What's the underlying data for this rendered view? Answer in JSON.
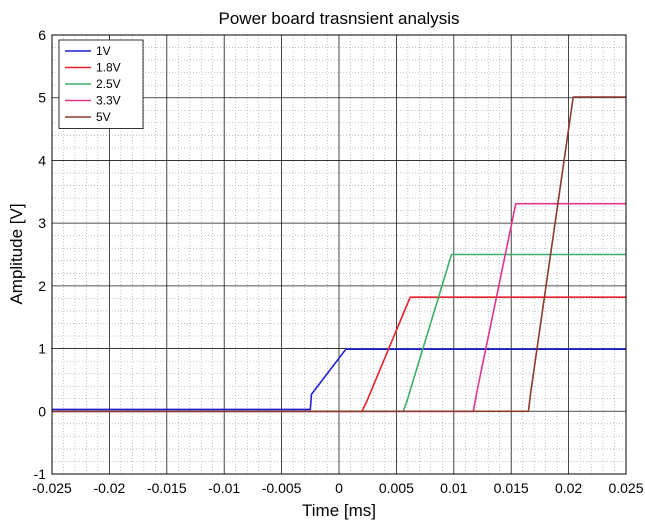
{
  "chart_data": {
    "type": "line",
    "title": "Power board trasnsient analysis",
    "xlabel": "Time [ms]",
    "ylabel": "Amplitude [V]",
    "xlim": [
      -0.025,
      0.025
    ],
    "ylim": [
      -1,
      6
    ],
    "xticks": [
      -0.025,
      -0.02,
      -0.015,
      -0.01,
      -0.005,
      0,
      0.005,
      0.01,
      0.015,
      0.02,
      0.025
    ],
    "xtick_labels": [
      "-0.025",
      "-0.02",
      "-0.015",
      "-0.01",
      "-0.005",
      "0",
      "0.005",
      "0.01",
      "0.015",
      "0.02",
      "0.025"
    ],
    "yticks": [
      -1,
      0,
      1,
      2,
      3,
      4,
      5,
      6
    ],
    "ytick_labels": [
      "-1",
      "0",
      "1",
      "2",
      "3",
      "4",
      "5",
      "6"
    ],
    "grid": true,
    "minor_grid": true,
    "legend_position": "top-left",
    "series": [
      {
        "name": "1V",
        "color": "#1f1fd6",
        "x": [
          -0.025,
          -0.0025,
          -0.0024,
          0.0006,
          0.025
        ],
        "y": [
          0.03,
          0.03,
          0.27,
          0.99,
          0.99
        ]
      },
      {
        "name": "1.8V",
        "color": "#e8202a",
        "x": [
          -0.025,
          0.002,
          0.0024,
          0.0062,
          0.025
        ],
        "y": [
          0.0,
          0.0,
          0.15,
          1.82,
          1.82
        ]
      },
      {
        "name": "2.5V",
        "color": "#3daf6a",
        "x": [
          -0.025,
          0.0056,
          0.0059,
          0.0098,
          0.025
        ],
        "y": [
          0.0,
          0.0,
          0.15,
          2.5,
          2.5
        ]
      },
      {
        "name": "3.3V",
        "color": "#e0358f",
        "x": [
          -0.025,
          0.0117,
          0.012,
          0.0154,
          0.025
        ],
        "y": [
          0.0,
          0.0,
          0.3,
          3.31,
          3.31
        ]
      },
      {
        "name": "5V",
        "color": "#8b3a2e",
        "x": [
          -0.025,
          0.0165,
          0.0167,
          0.0204,
          0.025
        ],
        "y": [
          0.0,
          0.0,
          0.3,
          5.01,
          5.01
        ]
      }
    ]
  }
}
